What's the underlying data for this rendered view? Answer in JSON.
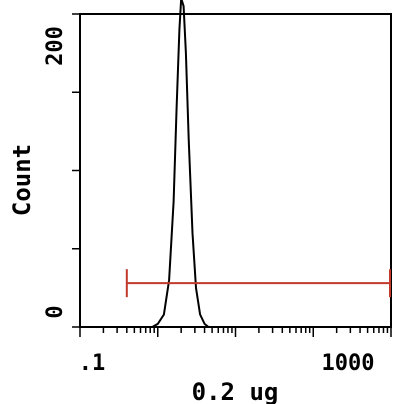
{
  "chart_data": {
    "type": "area",
    "title": "",
    "xlabel": "0.2 ug",
    "ylabel": "Count",
    "x_scale": "log",
    "xlim": [
      0.1,
      1000
    ],
    "ylim": [
      0,
      200
    ],
    "x_tick_labels": [
      ".1",
      "1000"
    ],
    "y_tick_labels": [
      "0",
      "200"
    ],
    "grid": false,
    "series": [
      {
        "points": [
          [
            0.85,
            0
          ],
          [
            1.0,
            2
          ],
          [
            1.2,
            8
          ],
          [
            1.4,
            30
          ],
          [
            1.6,
            80
          ],
          [
            1.75,
            140
          ],
          [
            1.9,
            190
          ],
          [
            2.0,
            210
          ],
          [
            2.15,
            205
          ],
          [
            2.3,
            175
          ],
          [
            2.5,
            120
          ],
          [
            2.8,
            60
          ],
          [
            3.1,
            25
          ],
          [
            3.5,
            8
          ],
          [
            4.0,
            2
          ],
          [
            4.5,
            0
          ]
        ],
        "color": "#000000"
      }
    ],
    "gate": {
      "x_start": 0.4,
      "x_end": 1000,
      "y": 28,
      "color": "#c0392b"
    }
  }
}
